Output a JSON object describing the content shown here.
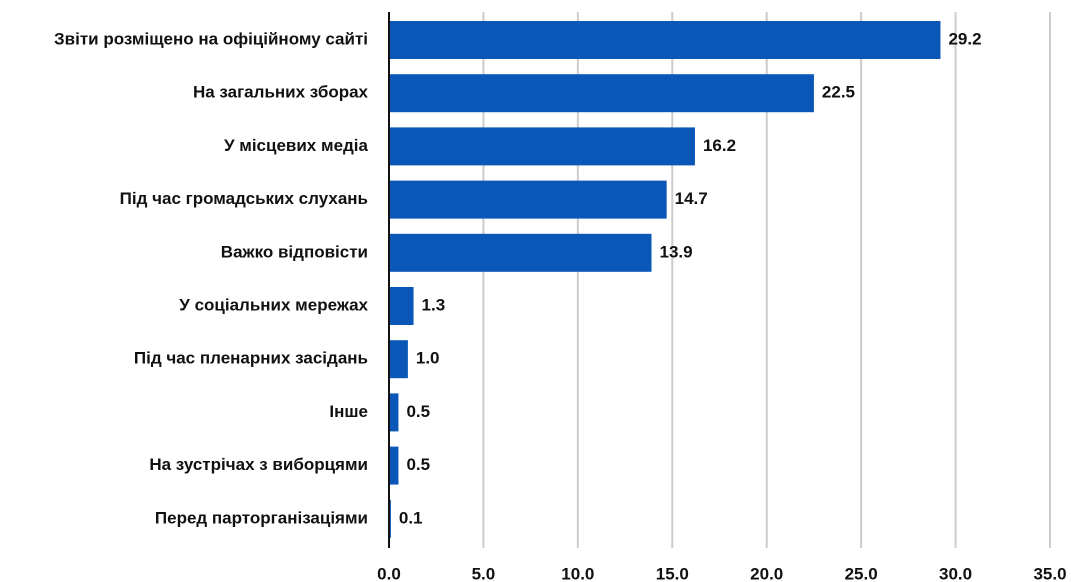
{
  "chart_data": {
    "type": "bar",
    "orientation": "horizontal",
    "categories": [
      "Звіти розміщено на офіційному сайті",
      "На загальних зборах",
      "У місцевих медіа",
      "Під час громадських слухань",
      "Важко відповісти",
      "У соціальних мережах",
      "Під час пленарних засідань",
      "Інше",
      "На зустрічах з виборцями",
      "Перед парторганізаціями"
    ],
    "values": [
      29.2,
      22.5,
      16.2,
      14.7,
      13.9,
      1.3,
      1.0,
      0.5,
      0.5,
      0.1
    ],
    "value_labels": [
      "29.2",
      "22.5",
      "16.2",
      "14.7",
      "13.9",
      "1.3",
      "1.0",
      "0.5",
      "0.5",
      "0.1"
    ],
    "color": "#0a57b8",
    "xlim": [
      0,
      35
    ],
    "xticks": [
      {
        "value": 0,
        "label": "0.0"
      },
      {
        "value": 5,
        "label": "5.0"
      },
      {
        "value": 10,
        "label": "10.0"
      },
      {
        "value": 15,
        "label": "15.0"
      },
      {
        "value": 20,
        "label": "20.0"
      },
      {
        "value": 25,
        "label": "25.0"
      },
      {
        "value": 30,
        "label": "30.0"
      },
      {
        "value": 35,
        "label": "35.0"
      }
    ],
    "grid": true
  }
}
